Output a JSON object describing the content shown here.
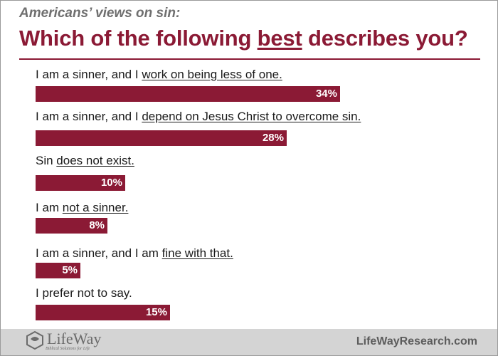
{
  "header": {
    "subtitle": "Americans’ views on sin:",
    "title_before": "Which of the following ",
    "title_emphasis": "best",
    "title_after": " describes you?"
  },
  "footer": {
    "logo_text": "LifeWay",
    "logo_tagline": "Biblical Solutions for Life",
    "url": "LifeWayResearch.com"
  },
  "colors": {
    "accent": "#8b1a35",
    "footer_bg": "#d4d4d4"
  },
  "chart_data": {
    "type": "bar",
    "orientation": "horizontal",
    "title": "Which of the following best describes you?",
    "subtitle": "Americans’ views on sin:",
    "categories": [
      {
        "prefix": "I am a sinner, and I ",
        "emphasis": "work on being less of one.",
        "suffix": ""
      },
      {
        "prefix": "I am a sinner, and I ",
        "emphasis": "depend on Jesus Christ to overcome sin.",
        "suffix": ""
      },
      {
        "prefix": "Sin ",
        "emphasis": "does not exist.",
        "suffix": ""
      },
      {
        "prefix": "I am ",
        "emphasis": "not a sinner.",
        "suffix": ""
      },
      {
        "prefix": "I am a sinner, and I am ",
        "emphasis": "fine with that.",
        "suffix": ""
      },
      {
        "prefix": "I prefer not to say.",
        "emphasis": "",
        "suffix": ""
      }
    ],
    "values": [
      34,
      28,
      10,
      8,
      5,
      15
    ],
    "value_labels": [
      "34%",
      "28%",
      "10%",
      "8%",
      "5%",
      "15%"
    ],
    "unit": "%",
    "xlim": [
      0,
      100
    ],
    "grid": false,
    "legend": "none"
  }
}
